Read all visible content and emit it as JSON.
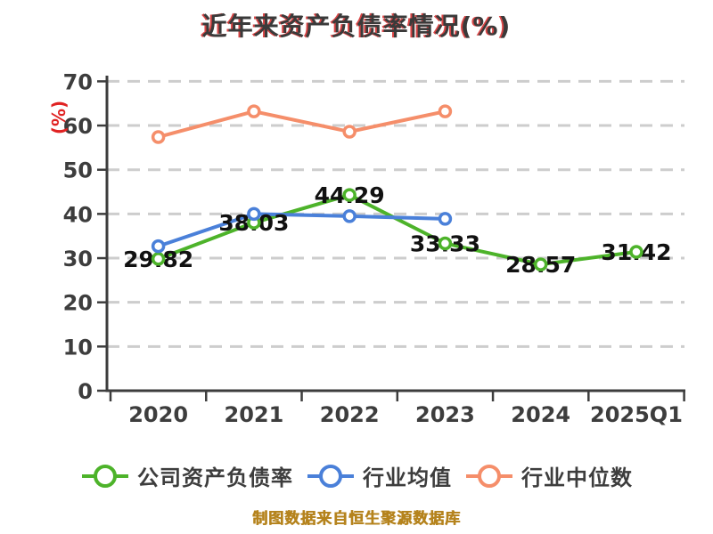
{
  "title": "近年来资产负债率情况(%)",
  "caption": "制图数据来自恒生聚源数据库",
  "colors": {
    "title_text": "#3a3a3a",
    "title_shadow": "#d94545",
    "axis_text": "#3d3d3d",
    "axis_line": "#3d3d3d",
    "grid_line": "#cdcdcd",
    "data_label": "#111111",
    "ylabel_red": "#e02222",
    "caption_gold": "#b5831d",
    "background": "#ffffff"
  },
  "chart_data": {
    "type": "line",
    "title": "近年来资产负债率情况(%)",
    "xlabel": "",
    "ylabel": "(%)",
    "ylim": [
      0,
      70
    ],
    "yticks": [
      0,
      10,
      20,
      30,
      40,
      50,
      60,
      70
    ],
    "grid": "horizontal dashed",
    "legend_position": "bottom",
    "categories": [
      "2020",
      "2021",
      "2022",
      "2023",
      "2024",
      "2025Q1"
    ],
    "series": [
      {
        "name": "公司资产负债率",
        "color": "#4db32a",
        "values": [
          29.82,
          38.03,
          44.29,
          33.33,
          28.57,
          31.42
        ],
        "data_labels": [
          "29.82",
          "38.03",
          "44.29",
          "33.33",
          "28.57",
          "31.42"
        ]
      },
      {
        "name": "行业均值",
        "color": "#4a80d9",
        "values": [
          32.7,
          40.0,
          39.5,
          38.9
        ],
        "data_labels": null
      },
      {
        "name": "行业中位数",
        "color": "#f58e6a",
        "values": [
          57.4,
          63.2,
          58.6,
          63.2
        ],
        "data_labels": null
      }
    ]
  }
}
